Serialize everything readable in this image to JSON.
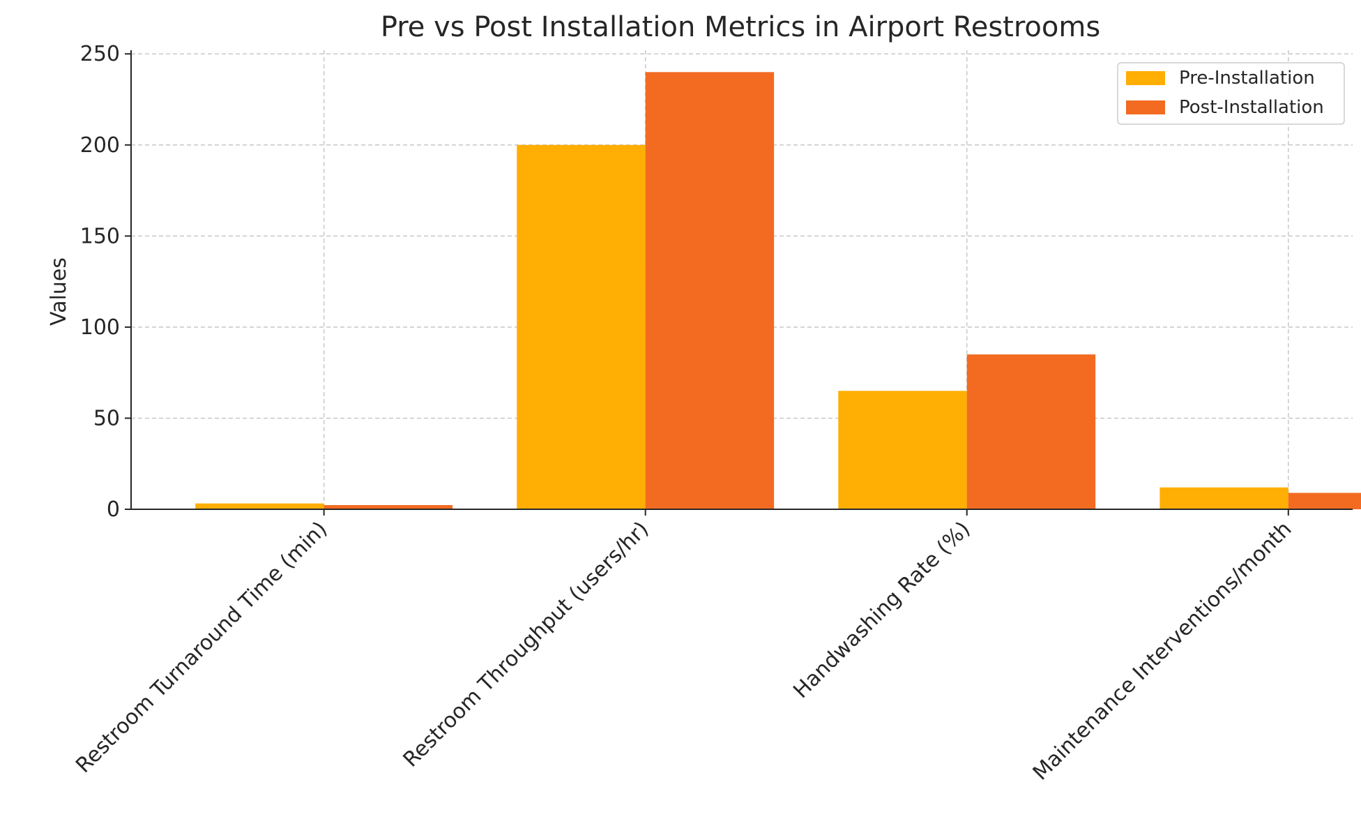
{
  "chart_data": {
    "type": "bar",
    "title": "Pre vs Post Installation Metrics in Airport Restrooms",
    "xlabel": "",
    "ylabel": "Values",
    "categories": [
      "Restroom Turnaround Time (min)",
      "Restroom Throughput (users/hr)",
      "Handwashing Rate (%)",
      "Maintenance Interventions/month"
    ],
    "series": [
      {
        "name": "Pre-Installation",
        "color": "#FFAE03",
        "values": [
          3.2,
          200,
          65,
          12
        ]
      },
      {
        "name": "Post-Installation",
        "color": "#F26B21",
        "values": [
          2.3,
          240,
          85,
          9
        ]
      }
    ],
    "ylim": [
      0,
      252
    ],
    "yticks": [
      0,
      50,
      100,
      150,
      200,
      250
    ],
    "grid": true,
    "legend_position": "top-right"
  }
}
